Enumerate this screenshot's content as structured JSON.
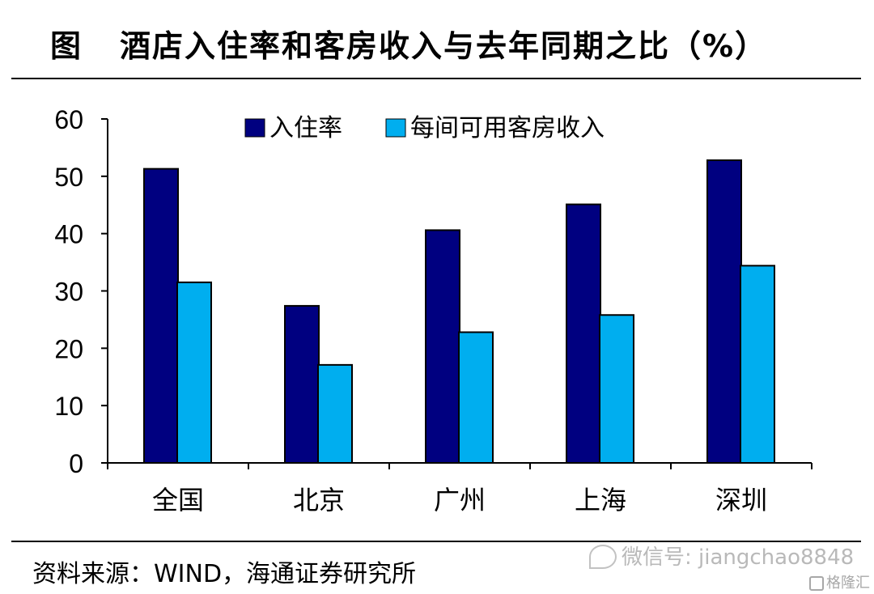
{
  "title": {
    "prefix": "图",
    "text": "酒店入住率和客房收入与去年同期之比（%）"
  },
  "source": "资料来源：WIND，海通证券研究所",
  "watermark": "微信号: jiangchao8848",
  "logo_text": "格隆汇",
  "colors": {
    "series1": "#000080",
    "series2": "#00AEEF",
    "axis": "#000000"
  },
  "chart_data": {
    "type": "bar",
    "categories": [
      "全国",
      "北京",
      "广州",
      "上海",
      "深圳"
    ],
    "series": [
      {
        "name": "入住率",
        "values": [
          51.3,
          27.4,
          40.6,
          45.1,
          52.8
        ]
      },
      {
        "name": "每间可用客房收入",
        "values": [
          31.5,
          17.1,
          22.8,
          25.8,
          34.4
        ]
      }
    ],
    "ylim": [
      0,
      60
    ],
    "yticks": [
      0,
      10,
      20,
      30,
      40,
      50,
      60
    ],
    "grid": false,
    "legend_position": "top"
  }
}
